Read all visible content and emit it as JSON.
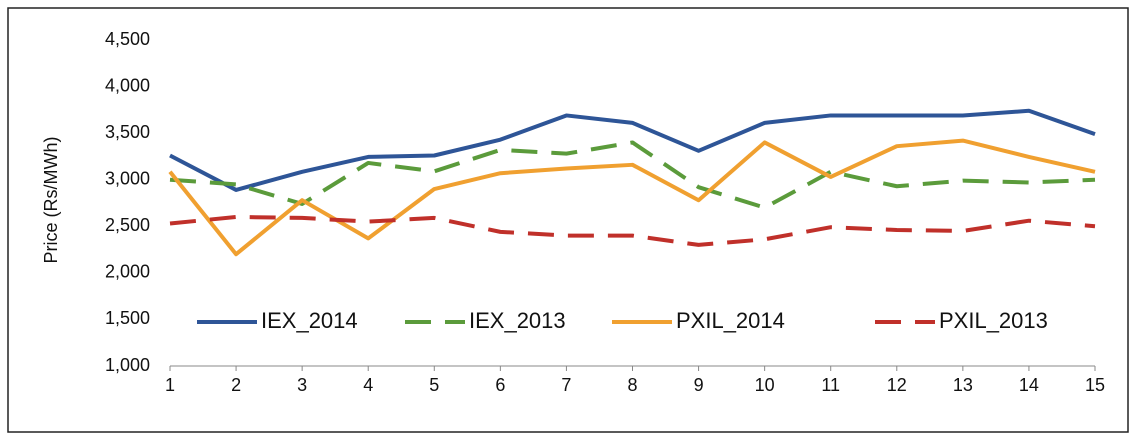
{
  "chart_data": {
    "type": "line",
    "y_label": "Price (Rs/MWh)",
    "x": [
      1,
      2,
      3,
      4,
      5,
      6,
      7,
      8,
      9,
      10,
      11,
      12,
      13,
      14,
      15
    ],
    "xlim": [
      1,
      15
    ],
    "xticks": [
      1,
      2,
      3,
      4,
      5,
      6,
      7,
      8,
      9,
      10,
      11,
      12,
      13,
      14,
      15
    ],
    "ylim": [
      1000,
      4500
    ],
    "yticks": [
      {
        "value": 1000,
        "label": "1,000"
      },
      {
        "value": 1500,
        "label": "1,500"
      },
      {
        "value": 2000,
        "label": "2,000"
      },
      {
        "value": 2500,
        "label": "2,500"
      },
      {
        "value": 3000,
        "label": "3,000"
      },
      {
        "value": 3500,
        "label": "3,500"
      },
      {
        "value": 4000,
        "label": "4,000"
      },
      {
        "value": 4500,
        "label": "4,500"
      }
    ],
    "grid": false,
    "legend": "inside-bottom",
    "series": [
      {
        "name": "IEX_2014",
        "color": "#2e5597",
        "dash": false,
        "values": [
          3260,
          2890,
          3085,
          3245,
          3260,
          3430,
          3690,
          3610,
          3310,
          3610,
          3690,
          3690,
          3690,
          3740,
          3490
        ]
      },
      {
        "name": "IEX_2013",
        "color": "#5b9b3b",
        "dash": true,
        "values": [
          3000,
          2950,
          2740,
          3180,
          3090,
          3320,
          3280,
          3400,
          2920,
          2700,
          3085,
          2930,
          2990,
          2970,
          3000
        ]
      },
      {
        "name": "PXIL_2014",
        "color": "#f0a030",
        "dash": false,
        "values": [
          3085,
          2200,
          2780,
          2370,
          2900,
          3070,
          3120,
          3160,
          2780,
          3400,
          3030,
          3360,
          3420,
          3245,
          3085
        ]
      },
      {
        "name": "PXIL_2013",
        "color": "#c0302a",
        "dash": true,
        "values": [
          2530,
          2600,
          2590,
          2550,
          2590,
          2440,
          2400,
          2400,
          2300,
          2360,
          2490,
          2460,
          2450,
          2560,
          2500
        ]
      }
    ]
  }
}
